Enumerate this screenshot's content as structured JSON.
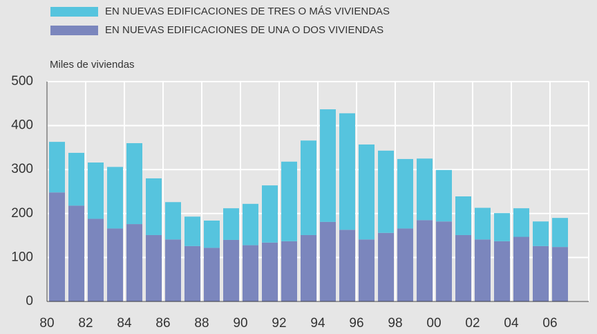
{
  "chart_data": {
    "type": "stacked-bar",
    "y_label": "Miles de viviendas",
    "categories": [
      "80",
      null,
      "82",
      null,
      "84",
      null,
      "86",
      null,
      "88",
      null,
      "90",
      null,
      "92",
      null,
      "94",
      null,
      "96",
      null,
      "98",
      null,
      "00",
      null,
      "02",
      null,
      "04",
      null,
      "06"
    ],
    "series": [
      {
        "name": "EN NUEVAS EDIFICACIONES DE UNA O DOS VIVIENDAS",
        "color": "#7b86bd",
        "values": [
          248,
          218,
          188,
          166,
          176,
          151,
          141,
          126,
          122,
          140,
          128,
          134,
          137,
          151,
          181,
          163,
          141,
          156,
          166,
          185,
          182,
          151,
          141,
          137,
          147,
          126,
          124
        ]
      },
      {
        "name": "EN NUEVAS EDIFICACIONES DE TRES O MÁS VIVIENDAS",
        "color": "#56c4de",
        "values": [
          115,
          120,
          128,
          140,
          184,
          129,
          85,
          67,
          62,
          72,
          94,
          130,
          181,
          215,
          256,
          265,
          216,
          187,
          158,
          140,
          117,
          88,
          72,
          64,
          65,
          56,
          66
        ]
      }
    ],
    "ylim": [
      0,
      500
    ],
    "yticks": [
      0,
      100,
      200,
      300,
      400,
      500
    ],
    "grid": true
  }
}
